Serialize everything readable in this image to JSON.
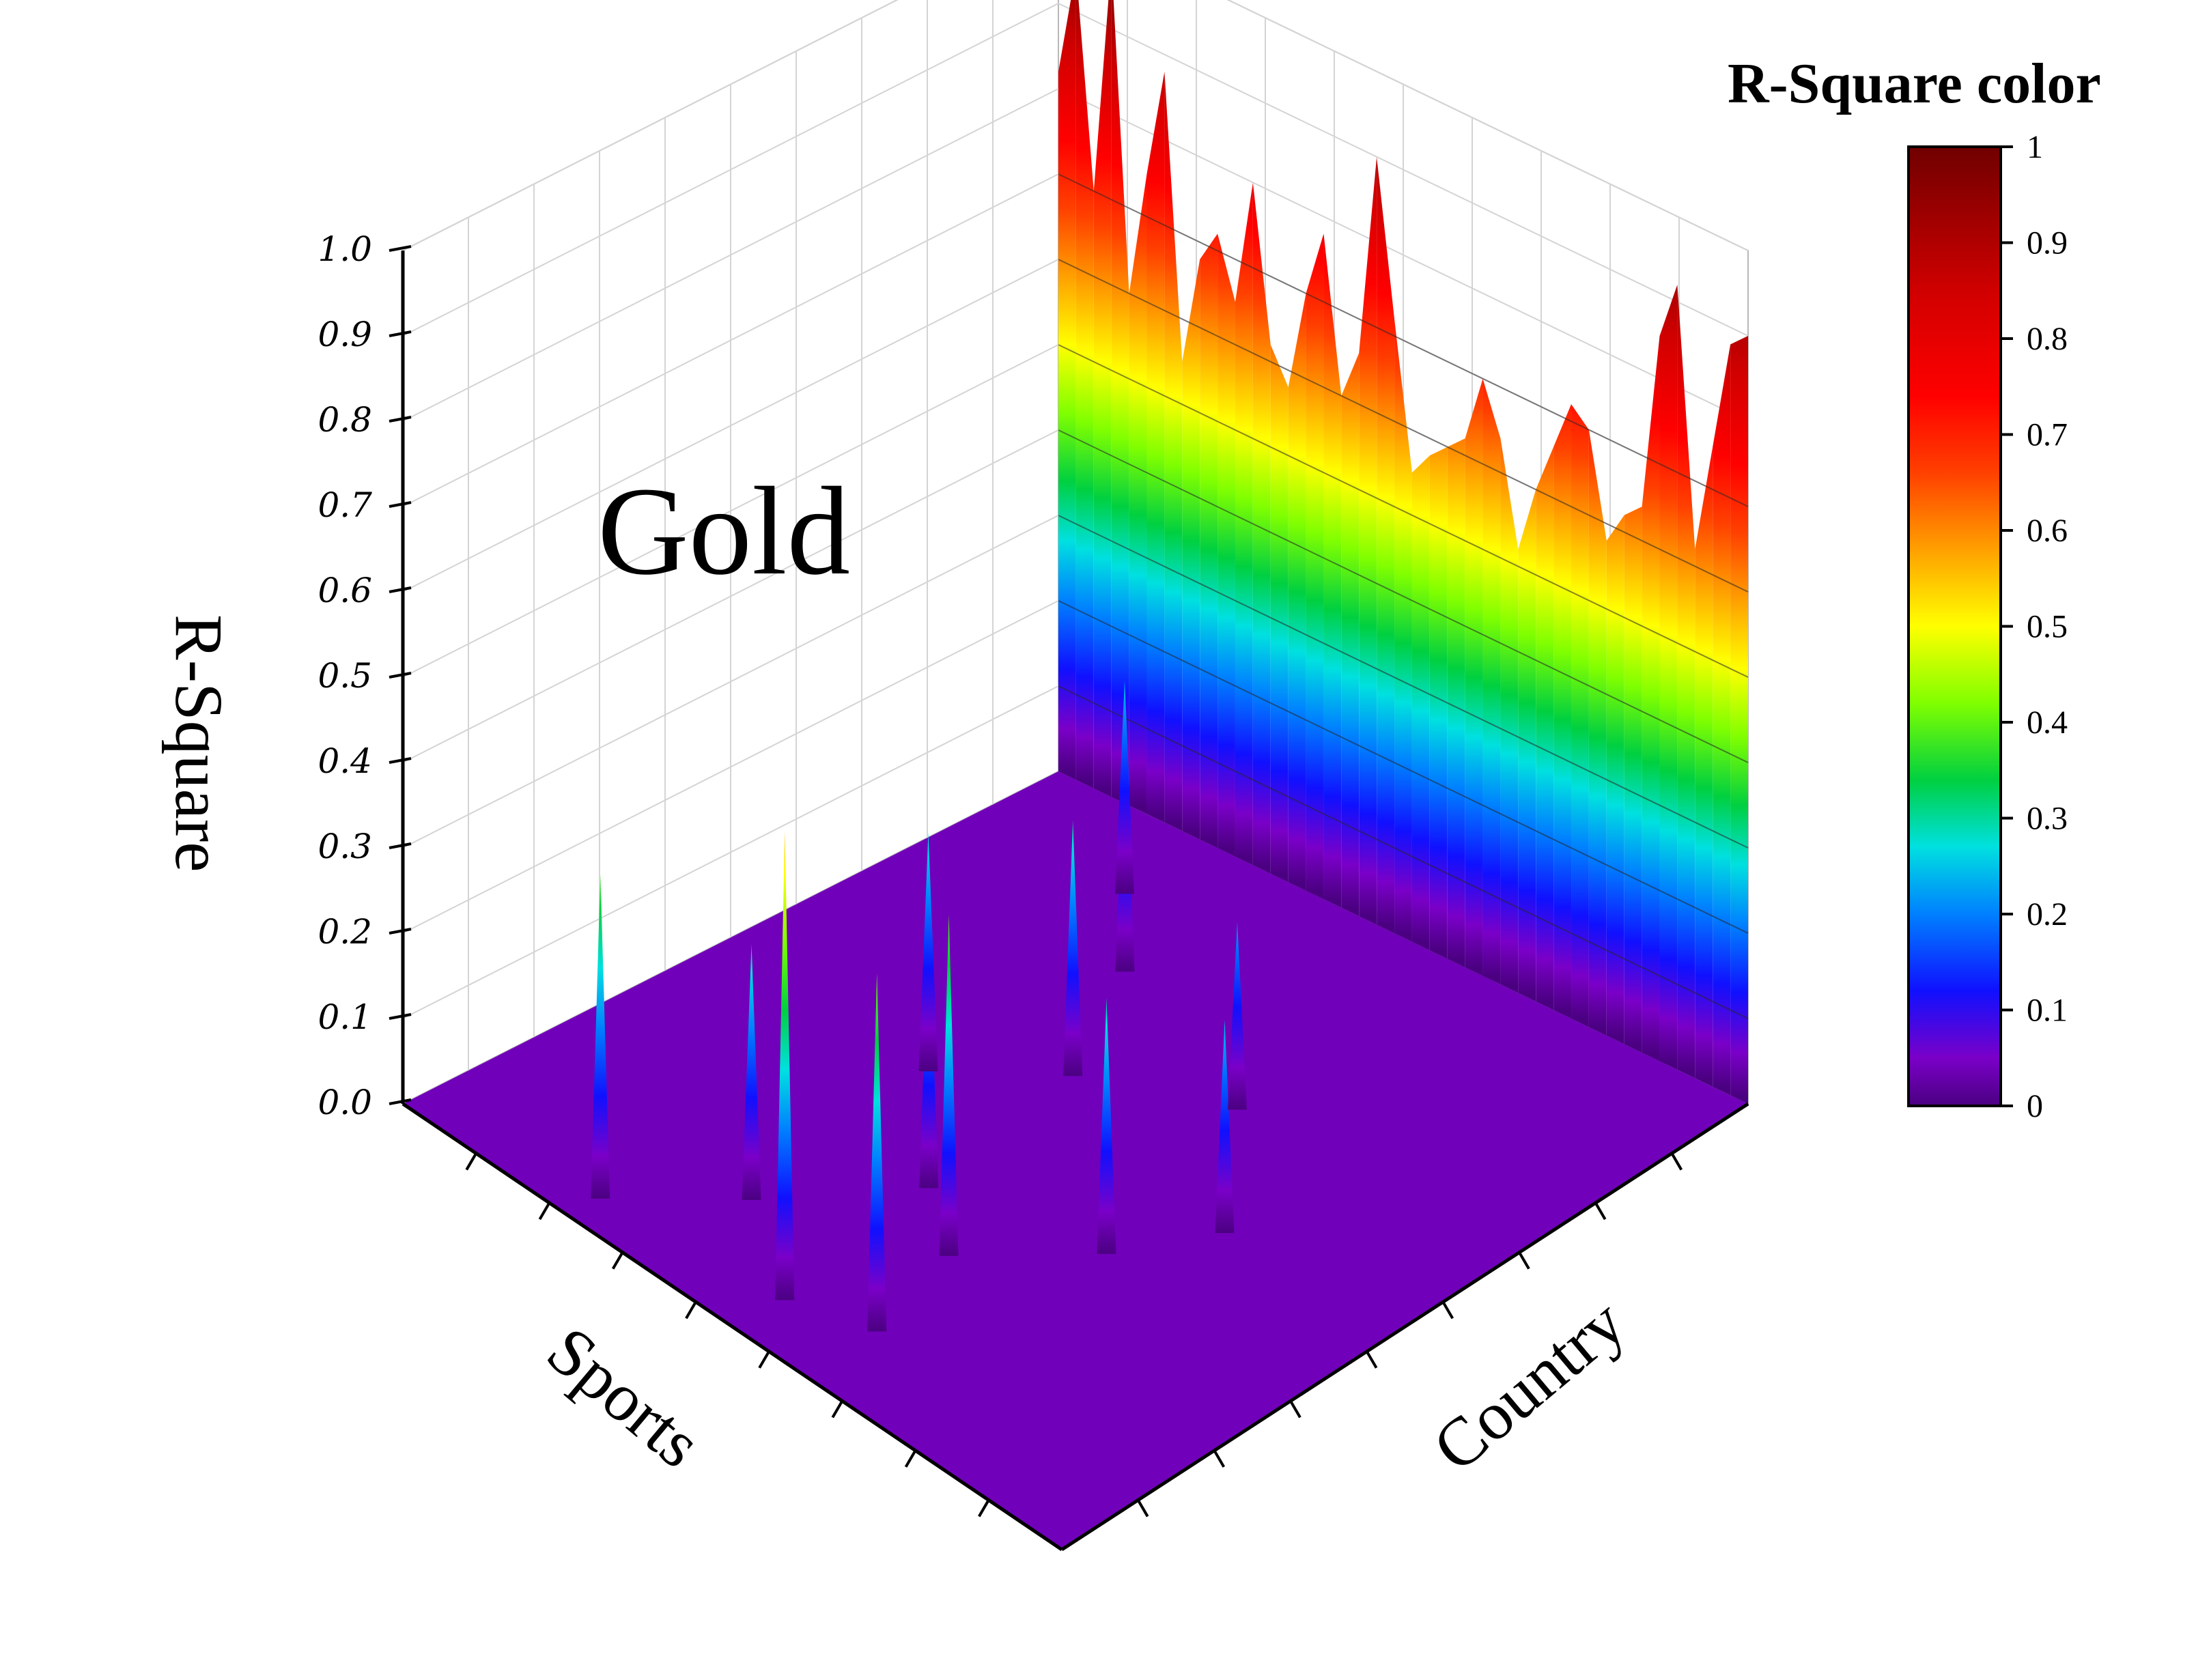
{
  "chart_data": {
    "type": "surface3d",
    "title": "Gold",
    "zlabel": "R-Square",
    "xlabel": "Sports",
    "ylabel": "Country",
    "zlim": [
      0,
      1
    ],
    "z_ticks": [
      "0.0",
      "0.1",
      "0.2",
      "0.3",
      "0.4",
      "0.5",
      "0.6",
      "0.7",
      "0.8",
      "0.9",
      "1.0"
    ],
    "colorbar": {
      "title": "R-Square color",
      "range": [
        0,
        1
      ],
      "ticks": [
        "0",
        "0.1",
        "0.2",
        "0.3",
        "0.4",
        "0.5",
        "0.6",
        "0.7",
        "0.8",
        "0.9",
        "1"
      ],
      "stops": [
        {
          "v": 0.0,
          "color": "#4b0082"
        },
        {
          "v": 0.05,
          "color": "#7a00c8"
        },
        {
          "v": 0.12,
          "color": "#1010ff"
        },
        {
          "v": 0.2,
          "color": "#0080ff"
        },
        {
          "v": 0.27,
          "color": "#00e0e0"
        },
        {
          "v": 0.34,
          "color": "#00d040"
        },
        {
          "v": 0.42,
          "color": "#80ff00"
        },
        {
          "v": 0.5,
          "color": "#ffff00"
        },
        {
          "v": 0.58,
          "color": "#ffa000"
        },
        {
          "v": 0.66,
          "color": "#ff4000"
        },
        {
          "v": 0.74,
          "color": "#ff0000"
        },
        {
          "v": 0.85,
          "color": "#d00000"
        },
        {
          "v": 1.0,
          "color": "#700000"
        }
      ]
    },
    "surface": {
      "description_free": true,
      "back_wall_values": [
        0.82,
        0.95,
        0.7,
        0.98,
        0.6,
        0.75,
        0.88,
        0.55,
        0.68,
        0.72,
        0.65,
        0.8,
        0.62,
        0.58,
        0.7,
        0.78,
        0.6,
        0.66,
        0.9,
        0.72,
        0.55,
        0.58,
        0.6,
        0.62,
        0.7,
        0.64,
        0.52,
        0.6,
        0.66,
        0.72,
        0.7,
        0.58,
        0.62,
        0.64,
        0.85,
        0.92,
        0.62,
        0.75,
        0.88,
        0.9
      ],
      "floor_peaks": [
        {
          "sport": 0.25,
          "country": 0.05,
          "z": 0.38
        },
        {
          "sport": 0.5,
          "country": 0.08,
          "z": 0.55
        },
        {
          "sport": 0.6,
          "country": 0.12,
          "z": 0.42
        },
        {
          "sport": 0.35,
          "country": 0.18,
          "z": 0.3
        },
        {
          "sport": 0.55,
          "country": 0.28,
          "z": 0.4
        },
        {
          "sport": 0.45,
          "country": 0.35,
          "z": 0.32
        },
        {
          "sport": 0.65,
          "country": 0.42,
          "z": 0.3
        },
        {
          "sport": 0.3,
          "country": 0.5,
          "z": 0.28
        },
        {
          "sport": 0.7,
          "country": 0.55,
          "z": 0.25
        },
        {
          "sport": 0.4,
          "country": 0.62,
          "z": 0.3
        },
        {
          "sport": 0.55,
          "country": 0.72,
          "z": 0.22
        },
        {
          "sport": 0.3,
          "country": 0.8,
          "z": 0.28
        },
        {
          "sport": 0.2,
          "country": 0.9,
          "z": 0.25
        }
      ]
    }
  }
}
